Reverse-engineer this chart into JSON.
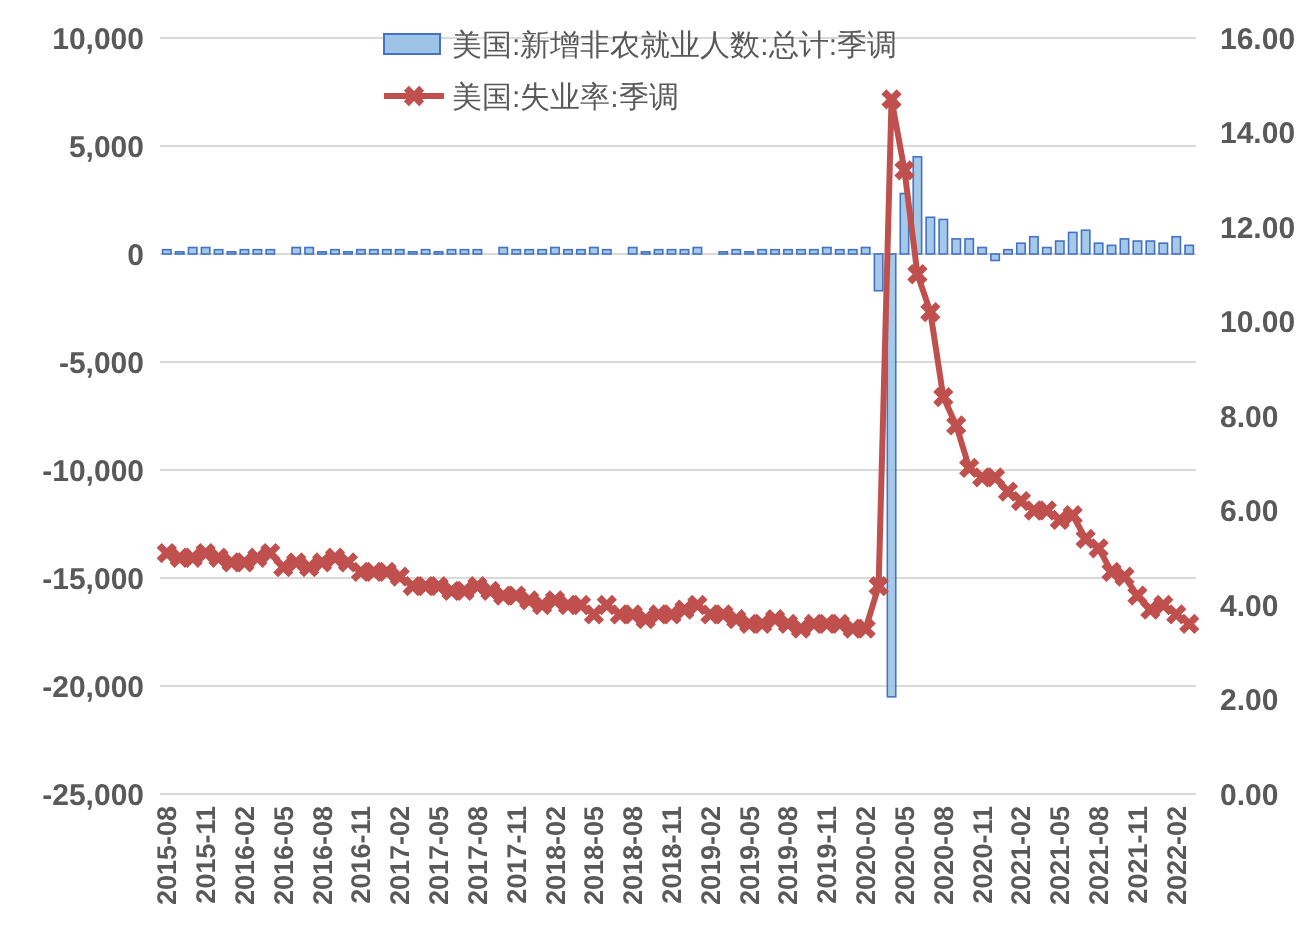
{
  "chart_data": {
    "type": "bar",
    "categories": [
      "2015-08",
      null,
      null,
      "2015-11",
      null,
      null,
      "2016-02",
      null,
      null,
      "2016-05",
      null,
      null,
      "2016-08",
      null,
      null,
      "2016-11",
      null,
      null,
      "2017-02",
      null,
      null,
      "2017-05",
      null,
      null,
      "2017-08",
      null,
      null,
      "2017-11",
      null,
      null,
      "2018-02",
      null,
      null,
      "2018-05",
      null,
      null,
      "2018-08",
      null,
      null,
      "2018-11",
      null,
      null,
      "2019-02",
      null,
      null,
      "2019-05",
      null,
      null,
      "2019-08",
      null,
      null,
      "2019-11",
      null,
      null,
      "2020-02",
      null,
      null,
      "2020-05",
      null,
      null,
      "2020-08",
      null,
      null,
      "2020-11",
      null,
      null,
      "2021-02",
      null,
      null,
      "2021-05",
      null,
      null,
      "2021-08",
      null,
      null,
      "2021-11",
      null,
      null,
      "2022-02",
      null
    ],
    "series": [
      {
        "name": "美国:新增非农就业人数:总计:季调",
        "axis": "y",
        "color": "#4472c4",
        "values": [
          200,
          100,
          300,
          300,
          200,
          100,
          200,
          200,
          200,
          0,
          300,
          300,
          100,
          200,
          100,
          200,
          200,
          200,
          200,
          100,
          200,
          100,
          200,
          200,
          200,
          0,
          300,
          200,
          200,
          200,
          300,
          200,
          200,
          300,
          200,
          0,
          300,
          100,
          200,
          200,
          200,
          300,
          0,
          100,
          200,
          100,
          200,
          200,
          200,
          200,
          200,
          300,
          200,
          200,
          300,
          -1700,
          -20500,
          2800,
          4500,
          1700,
          1600,
          700,
          700,
          300,
          -300,
          200,
          500,
          800,
          300,
          600,
          1000,
          1100,
          500,
          400,
          700,
          600,
          600,
          500,
          800,
          400
        ]
      },
      {
        "name": "美国:失业率:季调",
        "type": "line",
        "axis": "y2",
        "color": "#c0504d",
        "marker": "cross",
        "line_style": "solid",
        "values": [
          5.1,
          5.0,
          5.0,
          5.1,
          5.0,
          4.9,
          4.9,
          5.0,
          5.1,
          4.8,
          4.9,
          4.8,
          4.9,
          5.0,
          4.9,
          4.7,
          4.7,
          4.7,
          4.6,
          4.4,
          4.4,
          4.4,
          4.3,
          4.3,
          4.4,
          4.3,
          4.2,
          4.2,
          4.1,
          4.0,
          4.1,
          4.0,
          4.0,
          3.8,
          4.0,
          3.8,
          3.8,
          3.7,
          3.8,
          3.8,
          3.9,
          4.0,
          3.8,
          3.8,
          3.7,
          3.6,
          3.6,
          3.7,
          3.6,
          3.5,
          3.6,
          3.6,
          3.6,
          3.5,
          3.5,
          4.4,
          14.7,
          13.2,
          11.0,
          10.2,
          8.4,
          7.8,
          6.9,
          6.7,
          6.7,
          6.4,
          6.2,
          6.0,
          6.0,
          5.8,
          5.9,
          5.4,
          5.2,
          4.7,
          4.6,
          4.2,
          3.9,
          4.0,
          3.8,
          3.6
        ]
      }
    ],
    "ylim": [
      -25000,
      10000
    ],
    "yticks": [
      {
        "value": -25000,
        "label": "-25,000"
      },
      {
        "value": -20000,
        "label": "-20,000"
      },
      {
        "value": -15000,
        "label": "-15,000"
      },
      {
        "value": -10000,
        "label": "-10,000"
      },
      {
        "value": -5000,
        "label": "-5,000"
      },
      0,
      {
        "value": 5000,
        "label": "5,000"
      },
      {
        "value": 10000,
        "label": "10,000"
      }
    ],
    "y2lim": [
      0,
      16
    ],
    "y2ticks": [
      {
        "value": 0,
        "label": "0.00"
      },
      {
        "value": 2,
        "label": "2.00"
      },
      {
        "value": 4,
        "label": "4.00"
      },
      {
        "value": 6,
        "label": "6.00"
      },
      {
        "value": 8,
        "label": "8.00"
      },
      {
        "value": 10,
        "label": "10.00"
      },
      {
        "value": 12,
        "label": "12.00"
      },
      {
        "value": 14,
        "label": "14.00"
      },
      {
        "value": 16,
        "label": "16.00"
      }
    ],
    "grid": "y",
    "legend": "top"
  }
}
